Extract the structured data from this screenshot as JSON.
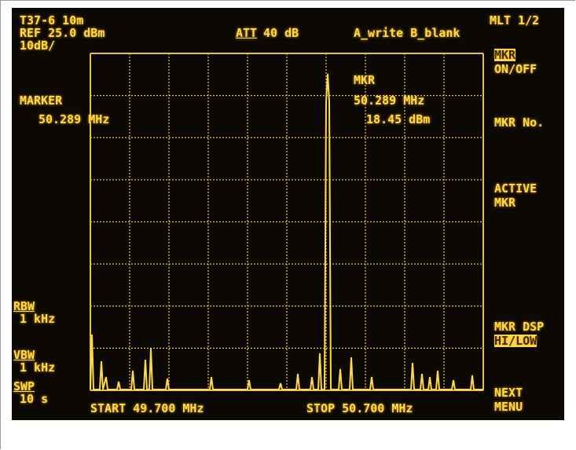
{
  "status": {
    "trace": "T37-6 10m",
    "ref": "REF 25.0 dBm",
    "scale": "10dB/",
    "att_label": "ATT",
    "att_value": "40 dB",
    "mode": "A_write B_blank",
    "page": "MLT 1/2"
  },
  "marker": {
    "label": "MARKER",
    "frequency": "50.289 MHz"
  },
  "marker_readout": {
    "label": "MKR",
    "frequency": "50.289 MHz",
    "level": "18.45 dBm"
  },
  "softkeys": [
    [
      "MKR",
      "ON/OFF"
    ],
    [
      "MKR No."
    ],
    [
      "ACTIVE",
      "MKR"
    ],
    [
      "MKR DSP",
      "HI/LOW"
    ],
    [
      "NEXT",
      "MENU"
    ]
  ],
  "settings": [
    {
      "label": "RBW",
      "value": "1 kHz"
    },
    {
      "label": "VBW",
      "value": "1 kHz"
    },
    {
      "label": "SWP",
      "value": "10 s"
    }
  ],
  "sweep": {
    "start": "START 49.700 MHz",
    "stop": "STOP 50.700 MHz"
  }
}
